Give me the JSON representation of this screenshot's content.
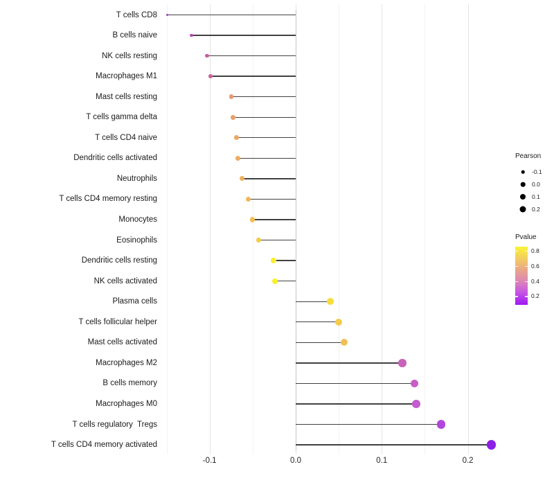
{
  "colors": {
    "background": "#ffffff",
    "stem": "#404040",
    "grid_major": "#e4e4e4",
    "grid_minor": "#f1f1f1",
    "zero_axis": "#c6c6c6",
    "legend_dot": "#000000"
  },
  "chart_data": {
    "type": "lollipop",
    "title": "",
    "xlabel": "",
    "ylabel": "",
    "xlim": [
      -0.156,
      0.246
    ],
    "grid": true,
    "x_ticks_major": [
      -0.1,
      0.0,
      0.1,
      0.2
    ],
    "x_tick_labels": [
      "-0.1",
      "0.0",
      "0.1",
      "0.2"
    ],
    "x_ticks_minor": [
      -0.15,
      -0.05,
      0.05,
      0.15
    ],
    "points": [
      {
        "label": "T cells CD8",
        "pearson": -0.149,
        "size": 3.0,
        "color": "#a138c0"
      },
      {
        "label": "B cells naive",
        "pearson": -0.121,
        "size": 4.6,
        "color": "#b746af"
      },
      {
        "label": "NK cells resting",
        "pearson": -0.103,
        "size": 5.4,
        "color": "#c95b9d"
      },
      {
        "label": "Macrophages M1",
        "pearson": -0.099,
        "size": 5.6,
        "color": "#cb629a"
      },
      {
        "label": "Mast cells resting",
        "pearson": -0.075,
        "size": 6.5,
        "color": "#e9996f"
      },
      {
        "label": "T cells gamma delta",
        "pearson": -0.073,
        "size": 6.5,
        "color": "#eaa06b"
      },
      {
        "label": "T cells CD4 naive",
        "pearson": -0.069,
        "size": 6.7,
        "color": "#ebaa63"
      },
      {
        "label": "Dendritic cells activated",
        "pearson": -0.067,
        "size": 6.8,
        "color": "#ecac60"
      },
      {
        "label": "Neutrophils",
        "pearson": -0.062,
        "size": 6.9,
        "color": "#edb15c"
      },
      {
        "label": "T cells CD4 memory resting",
        "pearson": -0.055,
        "size": 7.1,
        "color": "#efb857"
      },
      {
        "label": "Monocytes",
        "pearson": -0.05,
        "size": 7.3,
        "color": "#f1c050"
      },
      {
        "label": "Eosinophils",
        "pearson": -0.043,
        "size": 7.5,
        "color": "#f4ca47"
      },
      {
        "label": "Dendritic cells resting",
        "pearson": -0.026,
        "size": 8.0,
        "color": "#f9ee2e"
      },
      {
        "label": "NK cells activated",
        "pearson": -0.024,
        "size": 8.1,
        "color": "#f9f027"
      },
      {
        "label": "Plasma cells",
        "pearson": 0.04,
        "size": 9.7,
        "color": "#f6dc3d"
      },
      {
        "label": "T cells follicular helper",
        "pearson": 0.05,
        "size": 9.9,
        "color": "#f3cc4b"
      },
      {
        "label": "Mast cells activated",
        "pearson": 0.056,
        "size": 10.0,
        "color": "#f0c058"
      },
      {
        "label": "Macrophages M2",
        "pearson": 0.124,
        "size": 11.4,
        "color": "#c863b8"
      },
      {
        "label": "B cells memory",
        "pearson": 0.138,
        "size": 11.7,
        "color": "#c95dc6"
      },
      {
        "label": "Macrophages M0",
        "pearson": 0.14,
        "size": 11.7,
        "color": "#c45bce"
      },
      {
        "label": "T cells regulatory  Tregs",
        "pearson": 0.169,
        "size": 12.3,
        "color": "#b246dc"
      },
      {
        "label": "T cells CD4 memory activated",
        "pearson": 0.227,
        "size": 13.3,
        "color": "#8d1fe8"
      }
    ],
    "legend_size": {
      "title": "Pearson",
      "entries": [
        {
          "label": "-0.1",
          "size": 4.5
        },
        {
          "label": "0.0",
          "size": 6.5
        },
        {
          "label": "0.1",
          "size": 8.0
        },
        {
          "label": "0.2",
          "size": 9.0
        }
      ]
    },
    "legend_color": {
      "title": "Pvalue",
      "ticks": [
        {
          "label": "0.8",
          "pos_pct": 7
        },
        {
          "label": "0.6",
          "pos_pct": 33
        },
        {
          "label": "0.4",
          "pos_pct": 59
        },
        {
          "label": "0.2",
          "pos_pct": 85
        }
      ],
      "gradient_top_to_bottom": [
        {
          "pos_pct": 0,
          "color": "#f9f434"
        },
        {
          "pos_pct": 20,
          "color": "#f3cd60"
        },
        {
          "pos_pct": 42,
          "color": "#e8a28d"
        },
        {
          "pos_pct": 60,
          "color": "#dc84b8"
        },
        {
          "pos_pct": 78,
          "color": "#c757e2"
        },
        {
          "pos_pct": 100,
          "color": "#9d18f3"
        }
      ]
    }
  }
}
